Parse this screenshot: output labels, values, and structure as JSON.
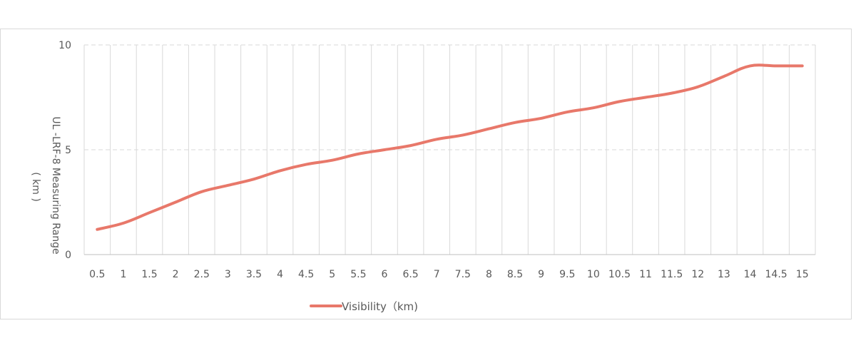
{
  "chart_data": {
    "type": "line",
    "title": "",
    "xlabel": "",
    "ylabel_line1": "UL -LRF-8  Measuring Range",
    "ylabel_line2": "( km )",
    "ylim": [
      0,
      10
    ],
    "yticks": [
      0,
      5,
      10
    ],
    "grid": "vertical solid, horizontal dashed",
    "legend_position": "bottom-left",
    "categories": [
      "0.5",
      "1",
      "1.5",
      "2",
      "2.5",
      "3",
      "3.5",
      "4",
      "4.5",
      "5",
      "5.5",
      "6",
      "6.5",
      "7",
      "7.5",
      "8",
      "8.5",
      "9",
      "9.5",
      "10",
      "10.5",
      "11",
      "11.5",
      "12",
      "13",
      "14",
      "14.5",
      "15"
    ],
    "series": [
      {
        "name": "Visibility（km)",
        "color": "#E8786A",
        "values": [
          1.2,
          1.5,
          2.0,
          2.5,
          3.0,
          3.3,
          3.6,
          4.0,
          4.3,
          4.5,
          4.8,
          5.0,
          5.2,
          5.5,
          5.7,
          6.0,
          6.3,
          6.5,
          6.8,
          7.0,
          7.3,
          7.5,
          7.7,
          8.0,
          8.5,
          9.0,
          9.0,
          9.0
        ]
      }
    ]
  }
}
